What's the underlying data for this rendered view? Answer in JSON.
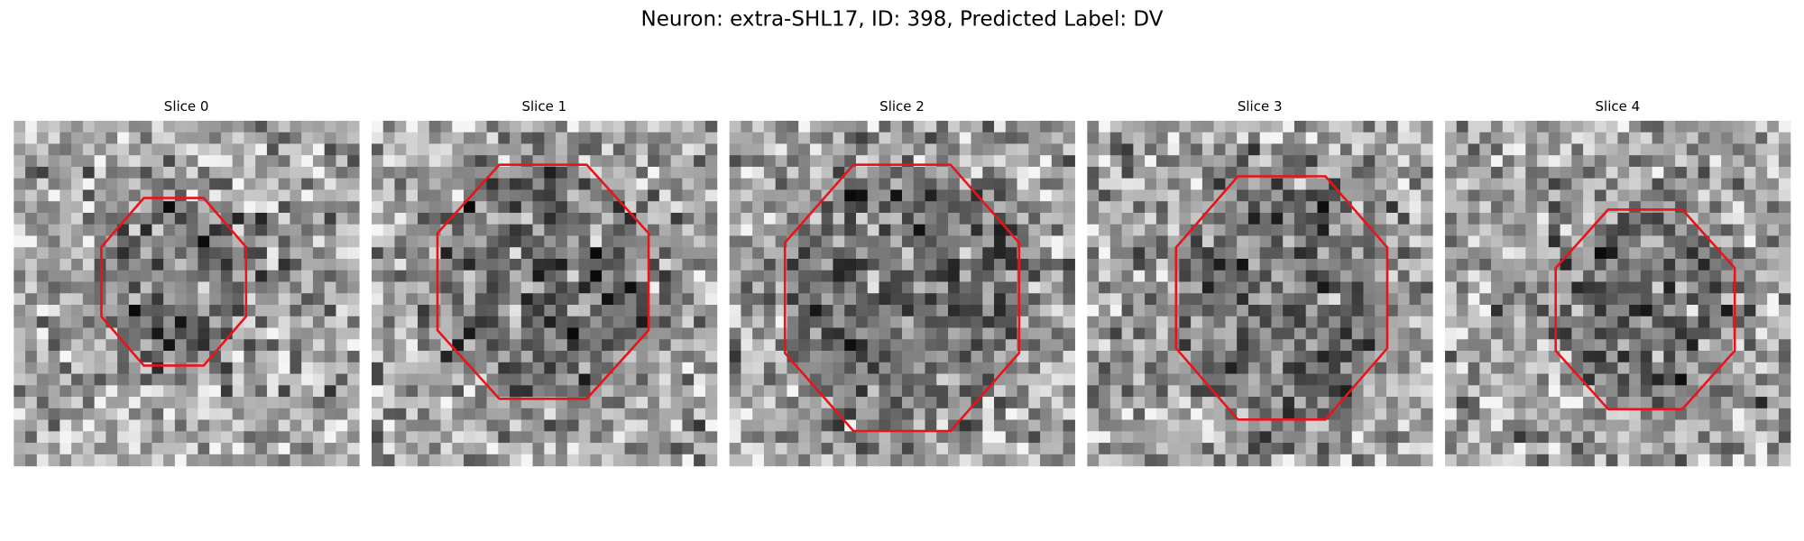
{
  "figure": {
    "title": "Neuron: extra-SHL17, ID: 398, Predicted Label: DV",
    "panels": [
      {
        "title": "Slice 0"
      },
      {
        "title": "Slice 1"
      },
      {
        "title": "Slice 2"
      },
      {
        "title": "Slice 3"
      },
      {
        "title": "Slice 4"
      }
    ]
  }
}
